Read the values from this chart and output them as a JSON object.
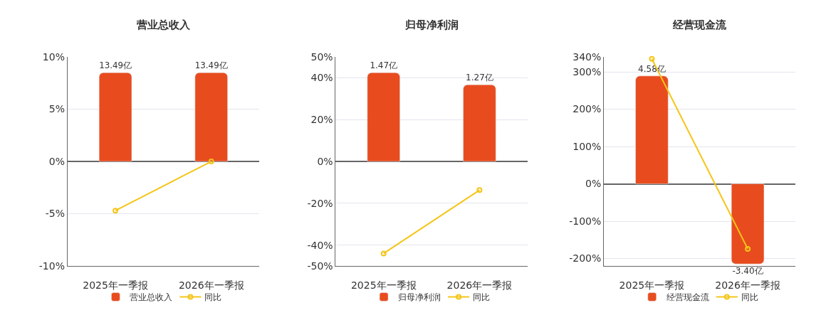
{
  "chart_data": [
    {
      "type": "bar",
      "title": "营业总收入",
      "categories": [
        "2025年一季报",
        "2026年一季报"
      ],
      "series": [
        {
          "name": "营业总收入",
          "axis": "y2",
          "color": "#e84c1e",
          "values": [
            13.49,
            13.49
          ],
          "value_labels": [
            "13.49亿",
            "13.49亿"
          ]
        },
        {
          "name": "同比",
          "type": "line",
          "color": "#f5c518",
          "values": [
            -4.7,
            0
          ]
        }
      ],
      "ylim": [
        -10,
        10
      ],
      "yticks": [
        {
          "value": -10,
          "label": "-10%"
        },
        {
          "value": -5,
          "label": "-5%"
        },
        {
          "value": 0,
          "label": "0%"
        },
        {
          "value": 5,
          "label": "5%"
        },
        {
          "value": 10,
          "label": "10%"
        }
      ],
      "grid": "y",
      "legend": "bottom",
      "marker": "circle",
      "line_style": "solid"
    },
    {
      "type": "bar",
      "title": "归母净利润",
      "categories": [
        "2025年一季报",
        "2026年一季报"
      ],
      "series": [
        {
          "name": "归母净利润",
          "axis": "y2",
          "color": "#e84c1e",
          "values": [
            1.47,
            1.27
          ],
          "value_labels": [
            "1.47亿",
            "1.27亿"
          ]
        },
        {
          "name": "同比",
          "type": "line",
          "color": "#f5c518",
          "values": [
            -44,
            -13.7
          ]
        }
      ],
      "ylim": [
        -50,
        50
      ],
      "yticks": [
        {
          "value": -50,
          "label": "-50%"
        },
        {
          "value": -40,
          "label": "-40%"
        },
        {
          "value": -20,
          "label": "-20%"
        },
        {
          "value": 0,
          "label": "0%"
        },
        {
          "value": 20,
          "label": "20%"
        },
        {
          "value": 40,
          "label": "40%"
        },
        {
          "value": 50,
          "label": "50%"
        }
      ],
      "grid": "y",
      "legend": "bottom",
      "marker": "circle",
      "line_style": "solid"
    },
    {
      "type": "bar",
      "title": "经营现金流",
      "categories": [
        "2025年一季报",
        "2026年一季报"
      ],
      "series": [
        {
          "name": "经营现金流",
          "axis": "y2",
          "color": "#e84c1e",
          "values": [
            4.58,
            -3.4
          ],
          "value_labels": [
            "4.58亿",
            "-3.40亿"
          ]
        },
        {
          "name": "同比",
          "type": "line",
          "color": "#f5c518",
          "values": [
            335,
            -174
          ]
        }
      ],
      "ylim": [
        -220,
        340
      ],
      "yticks": [
        {
          "value": -200,
          "label": "-200%"
        },
        {
          "value": -100,
          "label": "-100%"
        },
        {
          "value": 0,
          "label": "0%"
        },
        {
          "value": 100,
          "label": "100%"
        },
        {
          "value": 200,
          "label": "200%"
        },
        {
          "value": 300,
          "label": "300%"
        },
        {
          "value": 340,
          "label": "340%"
        }
      ],
      "grid": "y",
      "legend": "bottom",
      "marker": "circle",
      "line_style": "solid"
    }
  ]
}
